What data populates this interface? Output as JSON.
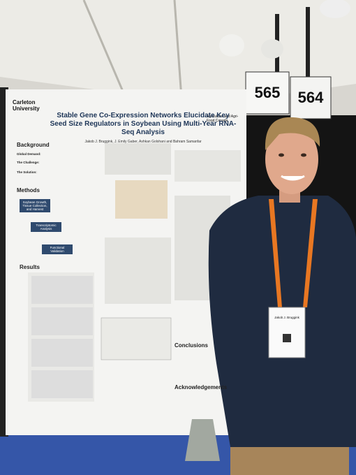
{
  "signs": [
    "565",
    "564"
  ],
  "poster": {
    "logo": "Carleton University",
    "partner": "Agriculture and Agri-Food Canada",
    "title": "Stable Gene Co-Expression Networks Elucidate Key Seed Size Regulators in Soybean Using Multi-Year RNA-Seq Analysis",
    "authors": "Jakob J. Bruggink, J. Emily Gaber, Ashkan Golshani and Bahram Samanfar",
    "background": {
      "heading": "Background",
      "items": [
        "Global Demand:",
        "The Challenge:",
        "The Solution:"
      ]
    },
    "methods": {
      "heading": "Methods",
      "items": [
        "Soybean Growth, Tissue Collection, and Harvest",
        "Transcriptomic Analysis",
        "Functional Validation"
      ]
    },
    "results": {
      "heading": "Results"
    },
    "conclusions": {
      "heading": "Conclusions"
    },
    "acknowledgements": {
      "heading": "Acknowledgements"
    }
  },
  "badge": {
    "name": "Jakob J. Bruggink"
  }
}
